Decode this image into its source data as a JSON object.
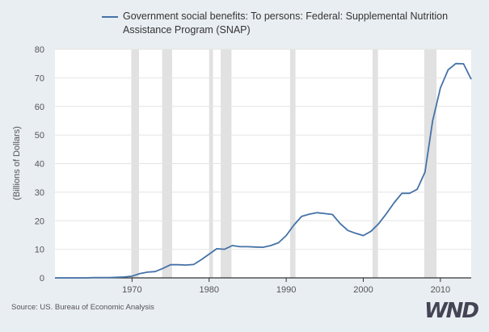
{
  "chart_data": {
    "type": "line",
    "title": "",
    "xlabel": "",
    "ylabel": "(Billions of Dollars)",
    "xlim": [
      1960,
      2014
    ],
    "ylim": [
      0,
      80
    ],
    "yticks": [
      0,
      10,
      20,
      30,
      40,
      50,
      60,
      70,
      80
    ],
    "xticks": [
      1970,
      1980,
      1990,
      2000,
      2010
    ],
    "grid": "horizontal",
    "legend_position": "top",
    "recessions": [
      [
        1969.9,
        1970.9
      ],
      [
        1973.9,
        1975.2
      ],
      [
        1980.0,
        1980.5
      ],
      [
        1981.5,
        1982.9
      ],
      [
        1990.5,
        1991.2
      ],
      [
        2001.2,
        2001.9
      ],
      [
        2007.9,
        2009.5
      ]
    ],
    "series": [
      {
        "name": "Government social benefits: To persons: Federal: Supplemental Nutrition Assistance Program (SNAP)",
        "color": "#4572a7",
        "x": [
          1960,
          1961,
          1962,
          1963,
          1964,
          1965,
          1966,
          1967,
          1968,
          1969,
          1970,
          1971,
          1972,
          1973,
          1974,
          1975,
          1976,
          1977,
          1978,
          1979,
          1980,
          1981,
          1982,
          1983,
          1984,
          1985,
          1986,
          1987,
          1988,
          1989,
          1990,
          1991,
          1992,
          1993,
          1994,
          1995,
          1996,
          1997,
          1998,
          1999,
          2000,
          2001,
          2002,
          2003,
          2004,
          2005,
          2006,
          2007,
          2008,
          2009,
          2010,
          2011,
          2012,
          2013,
          2014
        ],
        "values": [
          0.0,
          0.0,
          0.0,
          0.0,
          0.0,
          0.1,
          0.1,
          0.1,
          0.2,
          0.3,
          0.6,
          1.5,
          2.0,
          2.2,
          3.3,
          4.6,
          4.6,
          4.5,
          4.7,
          6.4,
          8.3,
          10.2,
          10.0,
          11.3,
          10.9,
          10.9,
          10.8,
          10.7,
          11.3,
          12.3,
          14.8,
          18.5,
          21.5,
          22.3,
          22.8,
          22.5,
          22.2,
          19.0,
          16.6,
          15.6,
          14.8,
          16.3,
          19.0,
          22.5,
          26.3,
          29.6,
          29.6,
          31.0,
          37.0,
          55.0,
          66.5,
          72.8,
          75.0,
          74.9,
          69.5
        ]
      }
    ]
  },
  "source": "Source: US. Bureau of Economic Analysis",
  "logo": "WND"
}
